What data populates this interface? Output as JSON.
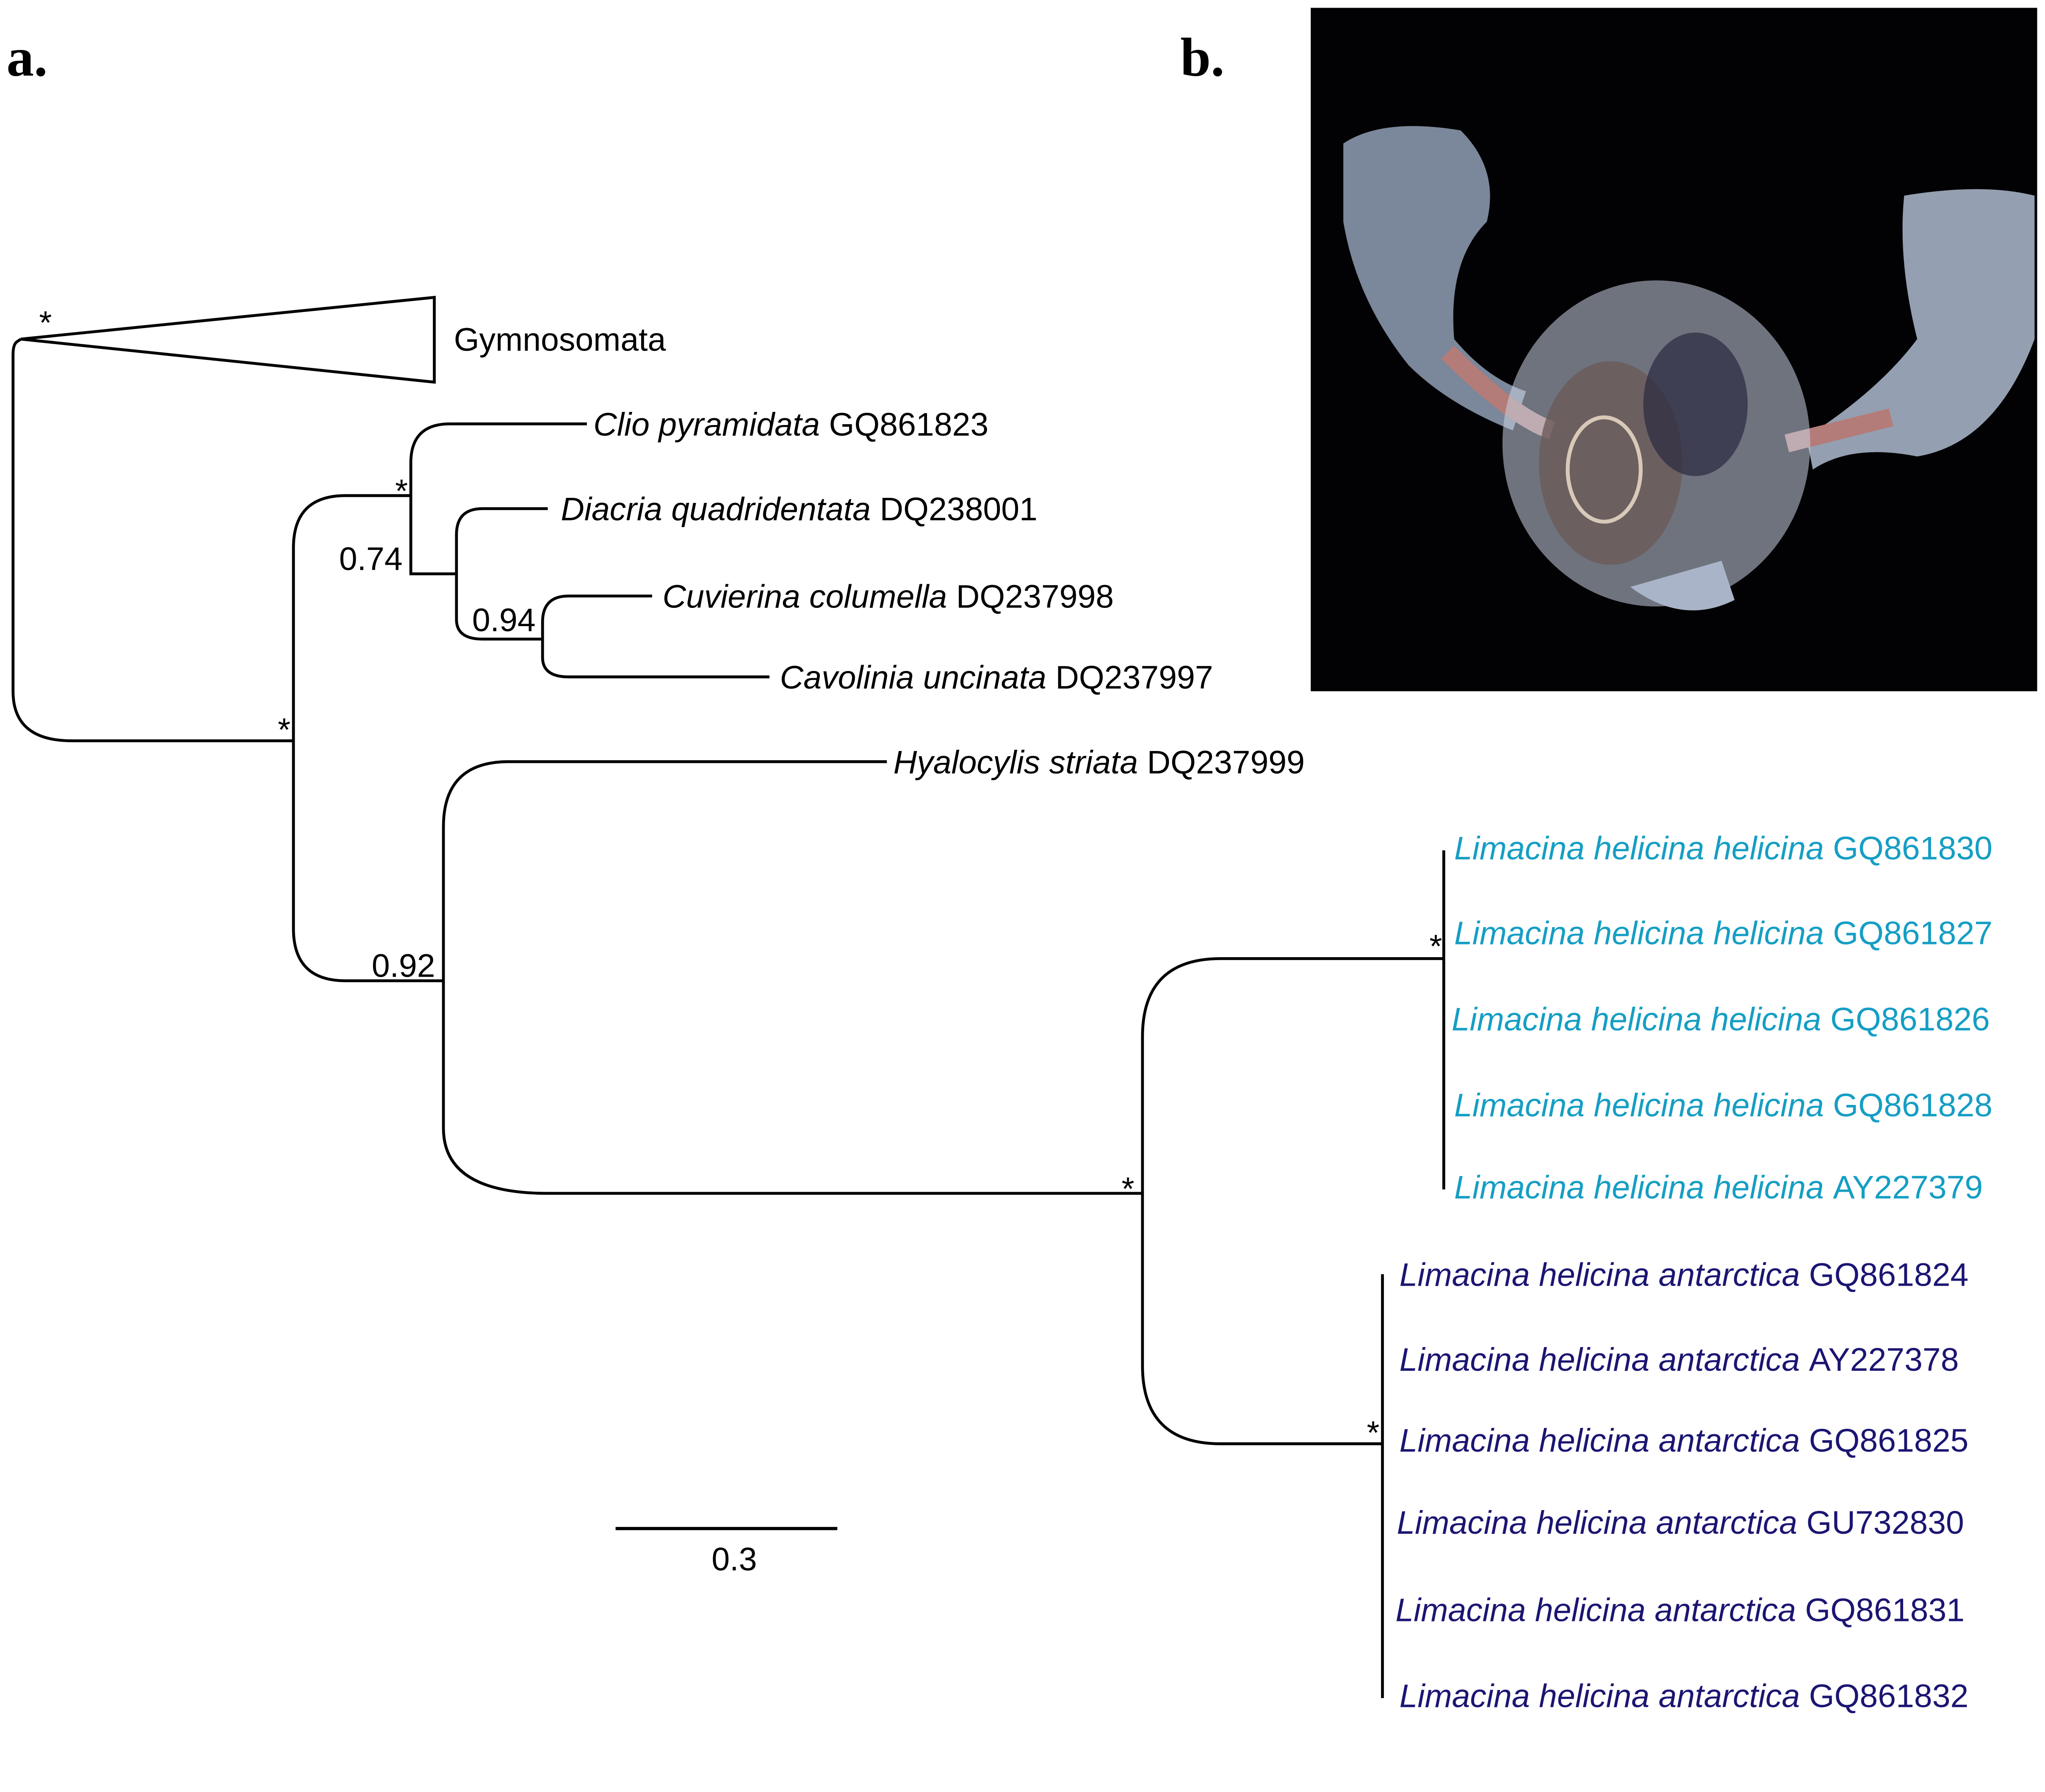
{
  "panel_a": {
    "label": "a.",
    "collapsed_clade": "Gymnosomata",
    "taxa": [
      {
        "species": "Clio pyramidata",
        "accession": "GQ861823"
      },
      {
        "species": "Diacria quadridentata",
        "accession": "DQ238001"
      },
      {
        "species": "Cuvierina columella",
        "accession": "DQ237998"
      },
      {
        "species": "Cavolinia uncinata",
        "accession": "DQ237997"
      },
      {
        "species": "Hyalocylis striata",
        "accession": "DQ237999"
      },
      {
        "species": "Limacina helicina helicina",
        "accession": "GQ861830"
      },
      {
        "species": "Limacina helicina helicina",
        "accession": "GQ861827"
      },
      {
        "species": "Limacina helicina helicina",
        "accession": "GQ861826"
      },
      {
        "species": "Limacina helicina helicina",
        "accession": "GQ861828"
      },
      {
        "species": "Limacina helicina helicina",
        "accession": "AY227379"
      },
      {
        "species": "Limacina helicina antarctica",
        "accession": "GQ861824"
      },
      {
        "species": "Limacina helicina antarctica",
        "accession": "AY227378"
      },
      {
        "species": "Limacina helicina antarctica",
        "accession": "GQ861825"
      },
      {
        "species": "Limacina helicina antarctica",
        "accession": "GU732830"
      },
      {
        "species": "Limacina helicina antarctica",
        "accession": "GQ861831"
      },
      {
        "species": "Limacina helicina antarctica",
        "accession": "GQ861832"
      }
    ],
    "support": [
      "*",
      "*",
      "0.74",
      "0.94",
      "*",
      "0.92",
      "*",
      "*",
      "*"
    ],
    "scale_bar": "0.3"
  },
  "panel_b": {
    "label": "b."
  }
}
